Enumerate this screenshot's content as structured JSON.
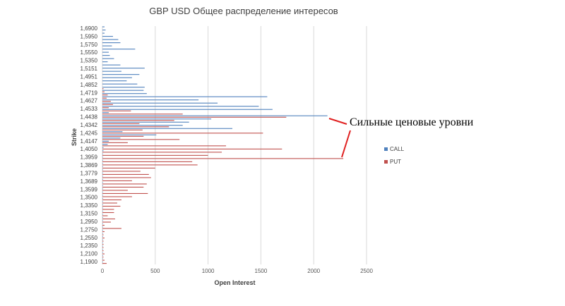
{
  "chart_data": {
    "type": "bar",
    "orientation": "horizontal",
    "title": "GBP USD Общее распределение интересов",
    "xlabel": "Open Interest",
    "ylabel": "Strike",
    "xlim": [
      0,
      2500
    ],
    "xticks": [
      "0",
      "500",
      "1000",
      "1500",
      "2000",
      "2500"
    ],
    "grid": "vertical",
    "legend_position": "right",
    "strike_labels": [
      "1,6900",
      "1,5950",
      "1,5750",
      "1,5550",
      "1,5350",
      "1,5151",
      "1,4951",
      "1,4852",
      "1,4719",
      "1,4627",
      "1,4533",
      "1,4438",
      "1,4342",
      "1,4245",
      "1,4147",
      "1,4050",
      "1,3959",
      "1,3869",
      "1,3779",
      "1,3689",
      "1,3599",
      "1,3500",
      "1,3350",
      "1,3150",
      "1,2950",
      "1,2750",
      "1,2550",
      "1,2350",
      "1,2100",
      "1,1900"
    ],
    "series": [
      {
        "name": "CALL",
        "color": "#4f81bd",
        "values": [
          20,
          30,
          20,
          100,
          150,
          170,
          90,
          310,
          60,
          70,
          110,
          50,
          170,
          400,
          180,
          350,
          280,
          230,
          330,
          400,
          390,
          420,
          1560,
          910,
          1090,
          1480,
          1610,
          60,
          2130,
          1030,
          820,
          760,
          1230,
          190,
          510,
          170,
          60,
          50,
          10,
          10,
          5,
          5,
          5,
          5,
          5,
          5,
          5,
          5,
          5,
          5,
          5,
          5,
          5,
          5,
          5,
          5,
          5,
          5,
          5,
          5,
          5,
          5,
          5,
          5,
          5,
          5,
          5,
          5,
          5,
          5,
          5,
          5,
          5,
          5,
          5
        ]
      },
      {
        "name": "PUT",
        "color": "#c0504d",
        "values": [
          0,
          0,
          0,
          0,
          0,
          0,
          0,
          0,
          0,
          0,
          0,
          0,
          0,
          0,
          0,
          0,
          0,
          0,
          0,
          10,
          20,
          50,
          40,
          80,
          100,
          60,
          270,
          760,
          1740,
          680,
          350,
          630,
          380,
          1520,
          390,
          730,
          240,
          1170,
          1700,
          1130,
          1000,
          2280,
          850,
          900,
          500,
          360,
          440,
          460,
          280,
          420,
          390,
          240,
          430,
          280,
          180,
          140,
          170,
          110,
          110,
          50,
          120,
          80,
          20,
          180,
          20,
          10,
          20,
          10,
          10,
          10,
          10,
          20,
          10,
          20,
          40
        ]
      }
    ],
    "annotation": "Сильные ценовые уровни"
  }
}
